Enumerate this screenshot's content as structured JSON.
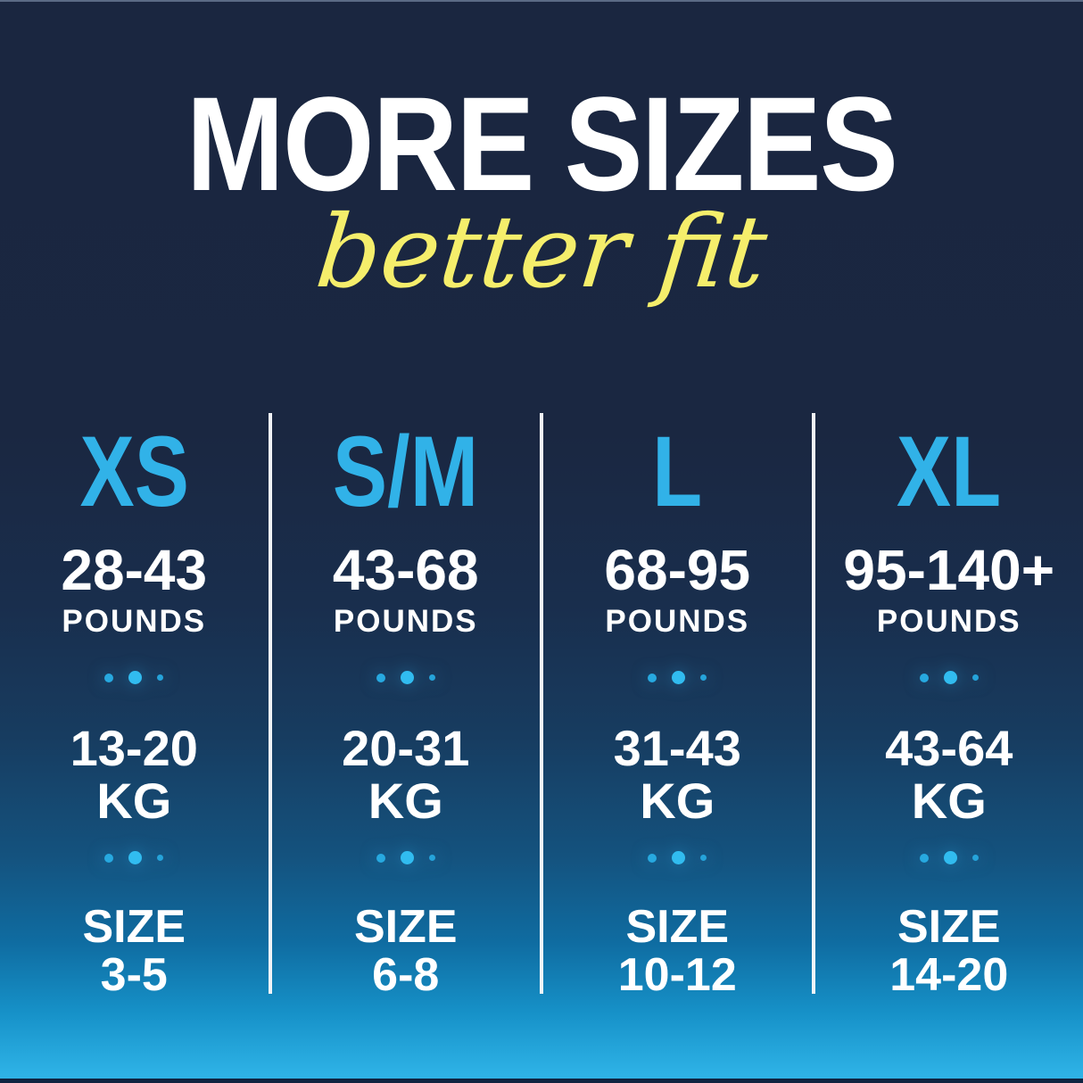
{
  "header": {
    "title": "MORE SIZES",
    "subtitle": "better fit"
  },
  "colors": {
    "background_top": "#1a2640",
    "background_bottom": "#2fb3e7",
    "accent_cyan": "#31b2e8",
    "accent_yellow": "#f5ee6b",
    "text_white": "#ffffff",
    "divider_white": "#f2f4f7"
  },
  "columns": [
    {
      "label": "XS",
      "pounds": "28-43",
      "pounds_unit": "POUNDS",
      "kg": "13-20",
      "kg_unit": "KG",
      "size_label": "SIZE",
      "size_range": "3-5"
    },
    {
      "label": "S/M",
      "pounds": "43-68",
      "pounds_unit": "POUNDS",
      "kg": "20-31",
      "kg_unit": "KG",
      "size_label": "SIZE",
      "size_range": "6-8"
    },
    {
      "label": "L",
      "pounds": "68-95",
      "pounds_unit": "POUNDS",
      "kg": "31-43",
      "kg_unit": "KG",
      "size_label": "SIZE",
      "size_range": "10-12"
    },
    {
      "label": "XL",
      "pounds": "95-140+",
      "pounds_unit": "POUNDS",
      "kg": "43-64",
      "kg_unit": "KG",
      "size_label": "SIZE",
      "size_range": "14-20"
    }
  ],
  "chart_data": {
    "type": "table",
    "title": "MORE SIZES better fit",
    "columns": [
      "Size",
      "Pounds",
      "Kilograms",
      "Clothing size"
    ],
    "rows": [
      [
        "XS",
        "28-43",
        "13-20",
        "3-5"
      ],
      [
        "S/M",
        "43-68",
        "20-31",
        "6-8"
      ],
      [
        "L",
        "68-95",
        "31-43",
        "10-12"
      ],
      [
        "XL",
        "95-140+",
        "43-64",
        "14-20"
      ]
    ]
  }
}
